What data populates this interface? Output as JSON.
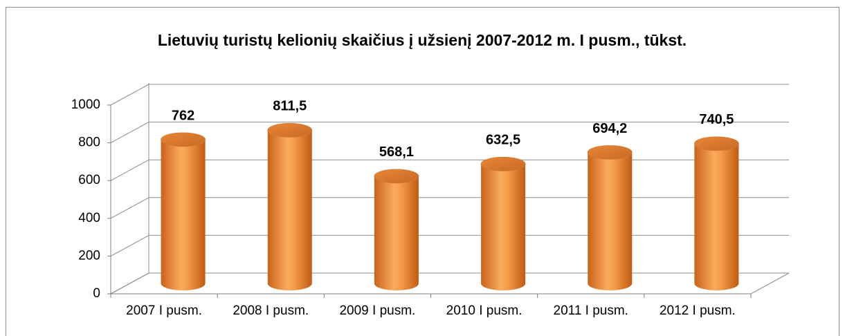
{
  "chart_data": {
    "type": "bar",
    "title": "Lietuvių turistų kelionių skaičius į užsienį 2007-2012 m. I pusm., tūkst.",
    "categories": [
      "2007 I pusm.",
      "2008 I pusm.",
      "2009 I pusm.",
      "2010 I pusm.",
      "2011 I pusm.",
      "2012 I pusm."
    ],
    "values": [
      762,
      811.5,
      568.1,
      632.5,
      694.2,
      740.5
    ],
    "value_labels": [
      "762",
      "811,5",
      "568,1",
      "632,5",
      "694,2",
      "740,5"
    ],
    "color": "#f0913a",
    "ylim": [
      0,
      1000
    ],
    "yticks": [
      0,
      200,
      400,
      600,
      800,
      1000
    ],
    "grid": true
  }
}
